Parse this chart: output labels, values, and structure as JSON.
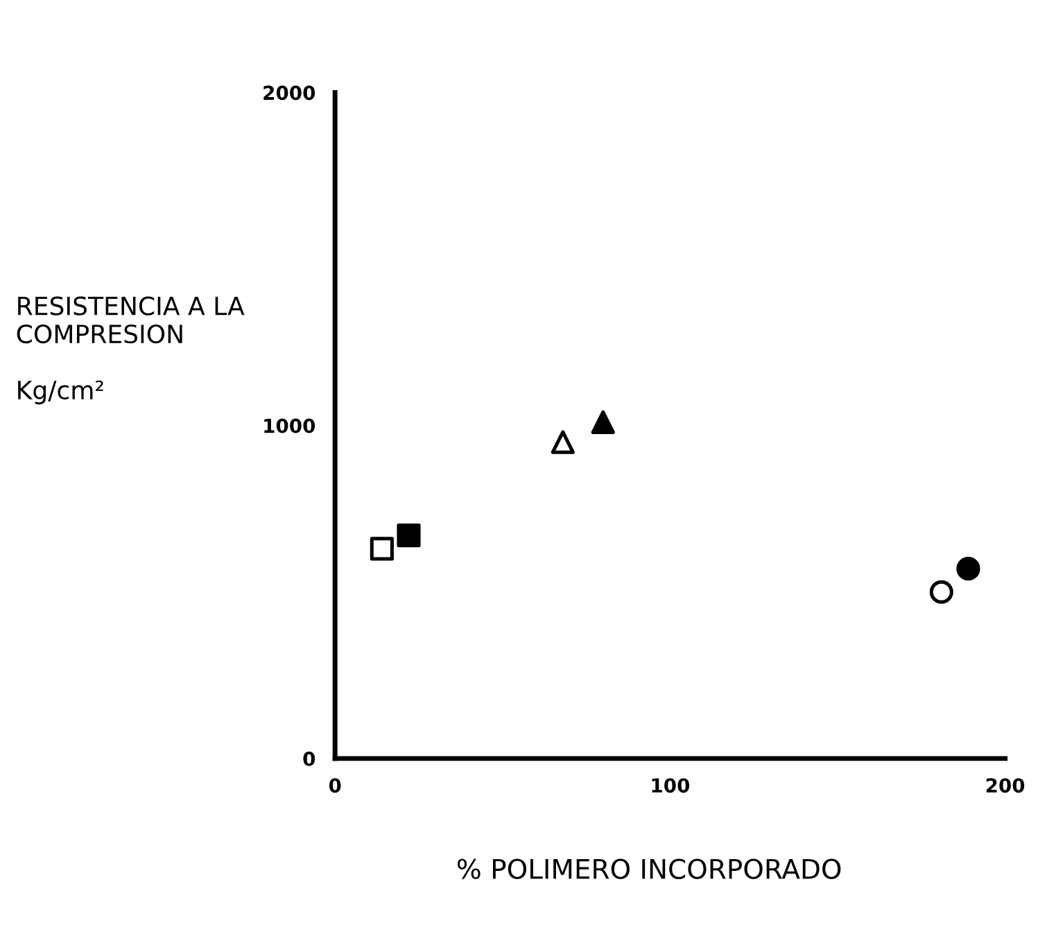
{
  "chart_data": {
    "type": "scatter",
    "xlabel": "% POLIMERO INCORPORADO",
    "ylabel": "RESISTENCIA A LA\nCOMPRESION\n\nKg/cm²",
    "xlim": [
      0,
      200
    ],
    "ylim": [
      0,
      2000
    ],
    "xticks": [
      0,
      100,
      200
    ],
    "yticks": [
      0,
      1000,
      2000
    ],
    "grid": false,
    "legend": false,
    "series": [
      {
        "color": "#ffffff",
        "marker": "square",
        "x": [
          14
        ],
        "values": [
          630
        ]
      },
      {
        "color": "#000000",
        "marker": "square",
        "x": [
          22
        ],
        "values": [
          670
        ]
      },
      {
        "color": "#ffffff",
        "marker": "triangle",
        "x": [
          68
        ],
        "values": [
          950
        ]
      },
      {
        "color": "#000000",
        "marker": "triangle",
        "x": [
          80
        ],
        "values": [
          1010
        ]
      },
      {
        "color": "#ffffff",
        "marker": "circle",
        "x": [
          181
        ],
        "values": [
          500
        ]
      },
      {
        "color": "#000000",
        "marker": "circle",
        "x": [
          189
        ],
        "values": [
          570
        ]
      }
    ]
  }
}
